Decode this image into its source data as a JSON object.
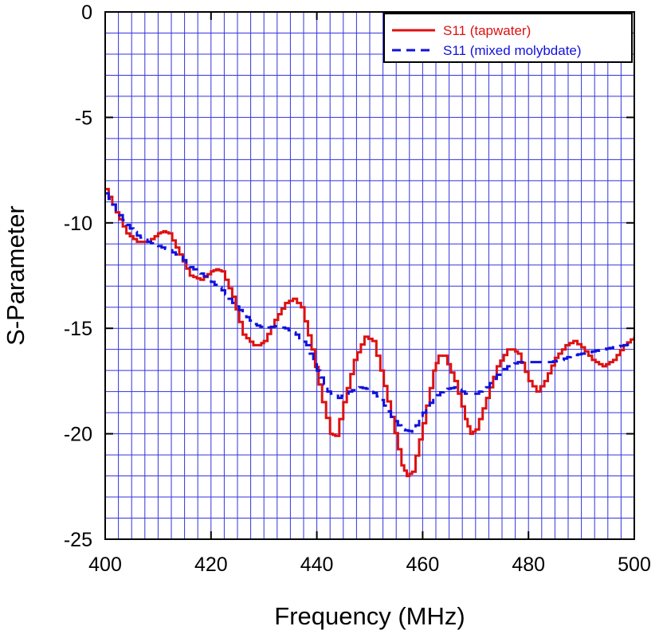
{
  "chart_data": {
    "type": "line",
    "title": "",
    "xlabel": "Frequency (MHz)",
    "ylabel": "S-Parameter",
    "xlim": [
      400,
      500
    ],
    "ylim": [
      -25,
      0
    ],
    "x_major_ticks": [
      400,
      420,
      440,
      460,
      480,
      500
    ],
    "x_major_labels": [
      "400",
      "420",
      "440",
      "460",
      "480",
      "500"
    ],
    "y_major_ticks": [
      0,
      -5,
      -10,
      -15,
      -20,
      -25
    ],
    "y_major_labels": [
      "0",
      "-5",
      "-10",
      "-15",
      "-20",
      "-25"
    ],
    "x_minor_step": 2.5,
    "y_minor_step": 1,
    "grid": true,
    "grid_color": "#3333dd",
    "legend_position": "top-right",
    "series": [
      {
        "name": "S11 (tapwater)",
        "color": "#dd1111",
        "style": "solid",
        "x": [
          400,
          402,
          404,
          406,
          408,
          410,
          411,
          412,
          414,
          416,
          418,
          420,
          421,
          422,
          424,
          426,
          428,
          429,
          430,
          432,
          434,
          435.5,
          437,
          439,
          441,
          442.5,
          443.5,
          445,
          447,
          449,
          450.5,
          452,
          454,
          456,
          457,
          458,
          460,
          462,
          463,
          464,
          466,
          468,
          469,
          470,
          472,
          474,
          476,
          477,
          478,
          480,
          481.5,
          483,
          485,
          487,
          488.5,
          490,
          492,
          494,
          496,
          498,
          500
        ],
        "y": [
          -8.4,
          -9.5,
          -10.5,
          -10.9,
          -10.9,
          -10.5,
          -10.4,
          -10.5,
          -11.5,
          -12.5,
          -12.7,
          -12.3,
          -12.2,
          -12.3,
          -13.5,
          -15.3,
          -15.8,
          -15.8,
          -15.6,
          -14.6,
          -13.8,
          -13.6,
          -14.0,
          -16.0,
          -18.5,
          -20.0,
          -20.1,
          -18.5,
          -16.5,
          -15.4,
          -15.6,
          -17.0,
          -19.2,
          -21.5,
          -22.0,
          -21.8,
          -19.5,
          -17.0,
          -16.3,
          -16.3,
          -17.5,
          -19.3,
          -20.0,
          -19.8,
          -18.3,
          -16.8,
          -16.0,
          -16.0,
          -16.2,
          -17.5,
          -18.0,
          -17.5,
          -16.4,
          -15.8,
          -15.6,
          -15.9,
          -16.5,
          -16.8,
          -16.5,
          -15.8,
          -15.4
        ]
      },
      {
        "name": "S11 (mixed molybdate)",
        "color": "#1111dd",
        "style": "dashed",
        "x": [
          400,
          402,
          404,
          406,
          408,
          410,
          412,
          414,
          416,
          418,
          420,
          422,
          424,
          426,
          428,
          430,
          432,
          434,
          436,
          438,
          440,
          442,
          444,
          446,
          448,
          450,
          452,
          454,
          456,
          458,
          460,
          462,
          464,
          466,
          468,
          470,
          472,
          474,
          476,
          478,
          480,
          482,
          484,
          486,
          488,
          490,
          492,
          494,
          496,
          498,
          500
        ],
        "y": [
          -8.6,
          -9.4,
          -10.1,
          -10.6,
          -10.9,
          -11.1,
          -11.3,
          -11.6,
          -12.1,
          -12.4,
          -12.8,
          -13.2,
          -13.8,
          -14.3,
          -14.8,
          -15.0,
          -14.9,
          -15.0,
          -15.3,
          -15.8,
          -17.0,
          -18.0,
          -18.3,
          -18.0,
          -17.8,
          -17.9,
          -18.4,
          -19.2,
          -19.8,
          -19.9,
          -19.0,
          -18.3,
          -17.9,
          -17.8,
          -18.1,
          -18.1,
          -17.8,
          -17.2,
          -16.8,
          -16.6,
          -16.6,
          -16.6,
          -16.6,
          -16.5,
          -16.3,
          -16.2,
          -16.1,
          -16.0,
          -15.9,
          -15.8,
          -15.7
        ]
      }
    ]
  }
}
